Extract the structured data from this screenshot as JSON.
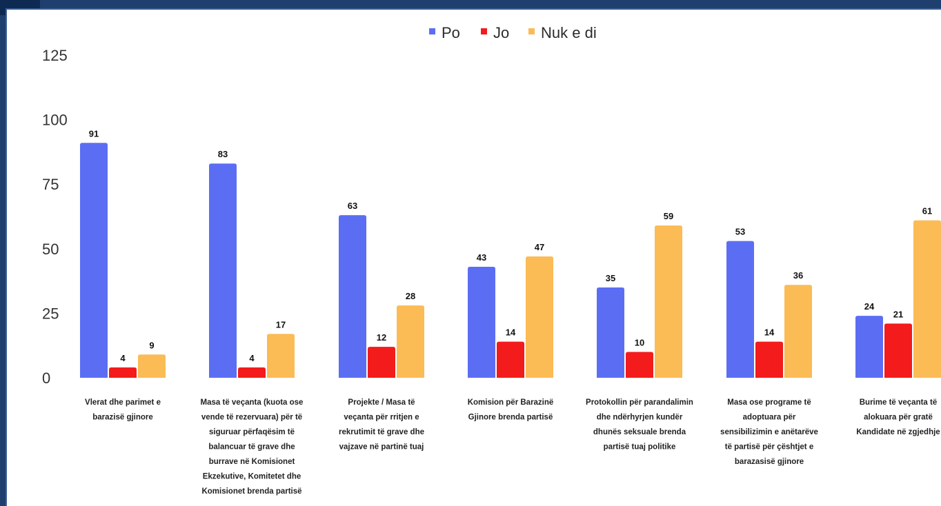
{
  "colors": {
    "Po": "#5b6ef3",
    "Jo": "#f31b1b",
    "Nuk e di": "#fbbb55"
  },
  "chart_data": {
    "type": "bar",
    "title": "",
    "xlabel": "",
    "ylabel": "",
    "ylim": [
      0,
      125
    ],
    "yticks": [
      0,
      25,
      50,
      75,
      100,
      125
    ],
    "legend": [
      "Po",
      "Jo",
      "Nuk e di"
    ],
    "legend_position": "top-center",
    "grid": false,
    "categories": [
      [
        "Vlerat dhe parimet e",
        "barazisë gjinore"
      ],
      [
        "Masa të veçanta (kuota ose",
        "vende të rezervuara) për të",
        "siguruar përfaqësim të",
        "balancuar të grave dhe",
        "burrave në Komisionet",
        "Ekzekutive, Komitetet dhe",
        "Komisionet brenda partisë"
      ],
      [
        "Projekte / Masa të",
        "veçanta për rritjen e",
        "rekrutimit të grave dhe",
        "vajzave në partinë tuaj"
      ],
      [
        "Komision për Barazinë",
        "Gjinore brenda partisë"
      ],
      [
        "Protokollin për parandalimin",
        "dhe ndërhyrjen kundër",
        "dhunës seksuale brenda",
        "partisë tuaj politike"
      ],
      [
        "Masa ose programe të",
        "adoptuara për",
        "sensibilizimin e anëtarëve",
        "të partisë për çështjet e",
        "barazasisë gjinore"
      ],
      [
        "Burime të veçanta të",
        "alokuara për gratë",
        "Kandidate në zgjedhje"
      ]
    ],
    "series": [
      {
        "name": "Po",
        "values": [
          91,
          83,
          63,
          43,
          35,
          53,
          24
        ]
      },
      {
        "name": "Jo",
        "values": [
          4,
          4,
          12,
          14,
          10,
          14,
          21
        ]
      },
      {
        "name": "Nuk e di",
        "values": [
          9,
          17,
          28,
          47,
          59,
          36,
          61
        ]
      }
    ]
  }
}
